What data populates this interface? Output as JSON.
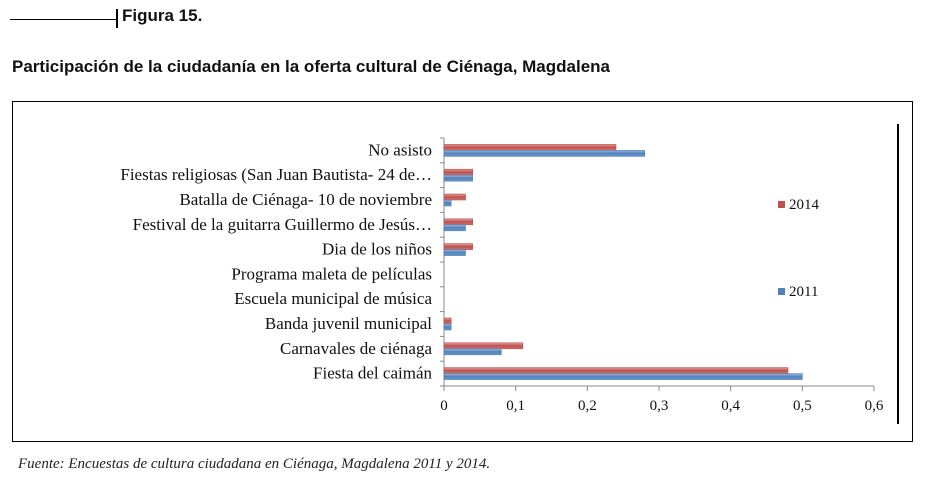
{
  "figure": {
    "label": "Figura 15.",
    "title": "Participación de la ciudadanía en la oferta cultural de Ciénaga, Magdalena",
    "source": "Fuente: Encuestas de cultura ciudadana en Ciénaga, Magdalena 2011 y 2014."
  },
  "chart_data": {
    "type": "bar",
    "orientation": "horizontal",
    "categories": [
      "No asisto",
      "Fiestas religiosas (San Juan Bautista- 24 de…",
      "Batalla de Ciénaga- 10 de noviembre",
      "Festival de la guitarra Guillermo de Jesús…",
      "Dia de los niños",
      "Programa maleta de películas",
      "Escuela municipal de música",
      "Banda juvenil municipal",
      "Carnavales de ciénaga",
      "Fiesta del caimán"
    ],
    "series": [
      {
        "name": "2014",
        "color": "#c0504d",
        "values": [
          0.24,
          0.04,
          0.03,
          0.04,
          0.04,
          0,
          0,
          0.01,
          0.11,
          0.48
        ]
      },
      {
        "name": "2011",
        "color": "#4f81bd",
        "values": [
          0.28,
          0.04,
          0.01,
          0.03,
          0.03,
          0,
          0,
          0.01,
          0.08,
          0.5
        ]
      }
    ],
    "xlim": [
      0,
      0.6
    ],
    "xticks": [
      "0",
      "0,1",
      "0,2",
      "0,3",
      "0,4",
      "0,5",
      "0,6"
    ],
    "legend_position": "right",
    "grid": false
  }
}
